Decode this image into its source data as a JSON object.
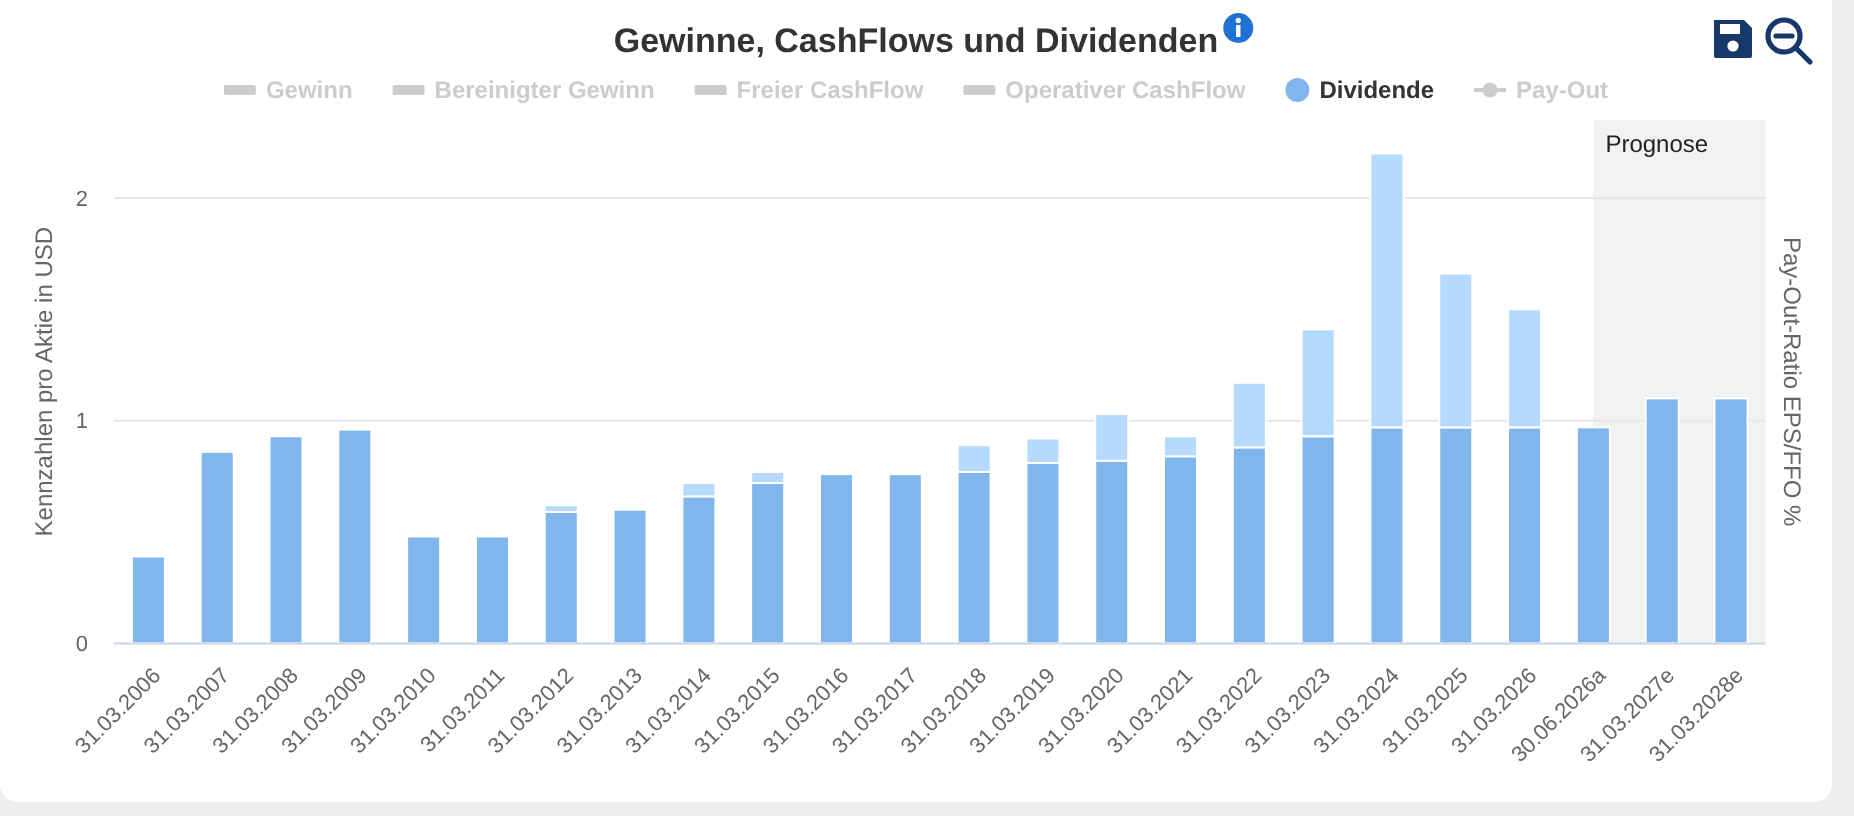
{
  "chart_data": {
    "type": "bar",
    "title": "Gewinne, CashFlows und Dividenden",
    "ylabel": "Kennzahlen pro Aktie in USD",
    "y2label": "Pay-Out-Ratio EPS/FFO %",
    "categories": [
      "31.03.2006",
      "31.03.2007",
      "31.03.2008",
      "31.03.2009",
      "31.03.2010",
      "31.03.2011",
      "31.03.2012",
      "31.03.2013",
      "31.03.2014",
      "31.03.2015",
      "31.03.2016",
      "31.03.2017",
      "31.03.2018",
      "31.03.2019",
      "31.03.2020",
      "31.03.2021",
      "31.03.2022",
      "31.03.2023",
      "31.03.2024",
      "31.03.2025",
      "31.03.2026",
      "30.06.2026a",
      "31.03.2027e",
      "31.03.2028e"
    ],
    "series": [
      {
        "name": "Gewinn",
        "type": "area",
        "color": "#cccccc",
        "values": [
          null,
          null,
          null,
          null,
          null,
          null,
          null,
          null,
          null,
          null,
          null,
          null,
          null,
          null,
          null,
          null,
          null,
          null,
          null,
          null,
          null,
          null,
          null,
          null
        ]
      },
      {
        "name": "Bereinigter Gewinn",
        "type": "area",
        "color": "#cccccc",
        "values": [
          null,
          null,
          null,
          null,
          null,
          null,
          null,
          null,
          null,
          null,
          null,
          null,
          null,
          null,
          null,
          null,
          null,
          null,
          null,
          null,
          null,
          null,
          null,
          null
        ]
      },
      {
        "name": "Freier CashFlow",
        "type": "area",
        "color": "#cccccc",
        "values": [
          null,
          null,
          null,
          null,
          null,
          null,
          null,
          null,
          null,
          null,
          null,
          null,
          null,
          null,
          null,
          null,
          null,
          null,
          null,
          null,
          null,
          null,
          null,
          null
        ]
      },
      {
        "name": "Operativer CashFlow",
        "type": "area",
        "color": "#cccccc",
        "values": [
          null,
          null,
          null,
          null,
          null,
          null,
          null,
          null,
          null,
          null,
          null,
          null,
          null,
          null,
          null,
          null,
          null,
          null,
          null,
          null,
          null,
          null,
          null,
          null
        ]
      },
      {
        "name": "Dividende",
        "color": "#80b6ec",
        "values": [
          0.39,
          0.86,
          0.93,
          0.96,
          0.48,
          0.48,
          0.59,
          0.6,
          0.66,
          0.72,
          0.76,
          0.76,
          0.77,
          0.81,
          0.82,
          0.84,
          0.88,
          0.93,
          0.97,
          0.97,
          0.97,
          0.97,
          1.1,
          1.1
        ]
      },
      {
        "color": "#b5dafd",
        "values": [
          null,
          null,
          null,
          null,
          null,
          null,
          0.03,
          null,
          0.06,
          0.05,
          null,
          null,
          0.12,
          0.11,
          0.21,
          0.09,
          0.29,
          0.48,
          1.23,
          0.69,
          0.53,
          null,
          null,
          null
        ]
      },
      {
        "name": "Pay-Out",
        "type": "line",
        "color": "#cccccc",
        "values": [
          null,
          null,
          null,
          null,
          null,
          null,
          null,
          null,
          null,
          null,
          null,
          null,
          null,
          null,
          null,
          null,
          null,
          null,
          null,
          null,
          null,
          null,
          null,
          null
        ]
      }
    ],
    "stacked": true,
    "ylim": [
      0,
      2.35
    ],
    "yticks": [
      0,
      1,
      2
    ],
    "grid": "y",
    "legend": "top",
    "marker": "circle",
    "bands": [
      {
        "axis": "x",
        "from": "30.06.2026a",
        "to": "31.03.2028e",
        "label": "Prognose",
        "color": "#f2f2f2"
      }
    ]
  }
}
